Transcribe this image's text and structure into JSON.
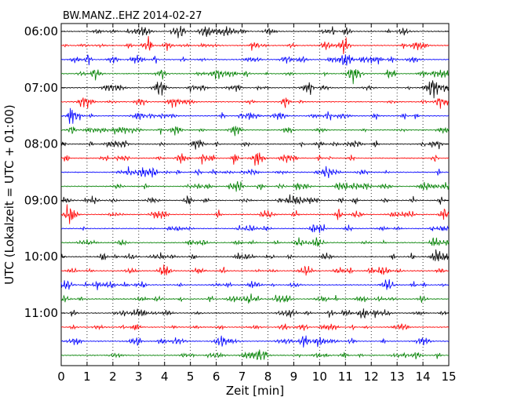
{
  "chart_data": {
    "type": "line",
    "title": "BW.MANZ..EHZ 2014-02-27",
    "xlabel": "Zeit  [min]",
    "ylabel": "UTC (Lokalzeit = UTC + 01:00)",
    "xlim": [
      0,
      15
    ],
    "x_ticks": [
      "0",
      "1",
      "2",
      "3",
      "4",
      "5",
      "6",
      "7",
      "8",
      "9",
      "10",
      "11",
      "12",
      "13",
      "14",
      "15"
    ],
    "y_ticks": [
      "06:00",
      "07:00",
      "08:00",
      "09:00",
      "10:00",
      "11:00"
    ],
    "trace_interval_min": 15,
    "start_time": "06:00",
    "trace_count": 24,
    "trace_colors": [
      "#000000",
      "#ff0000",
      "#0000ff",
      "#008000"
    ],
    "grid": {
      "x": "dotted",
      "y": "none"
    }
  }
}
